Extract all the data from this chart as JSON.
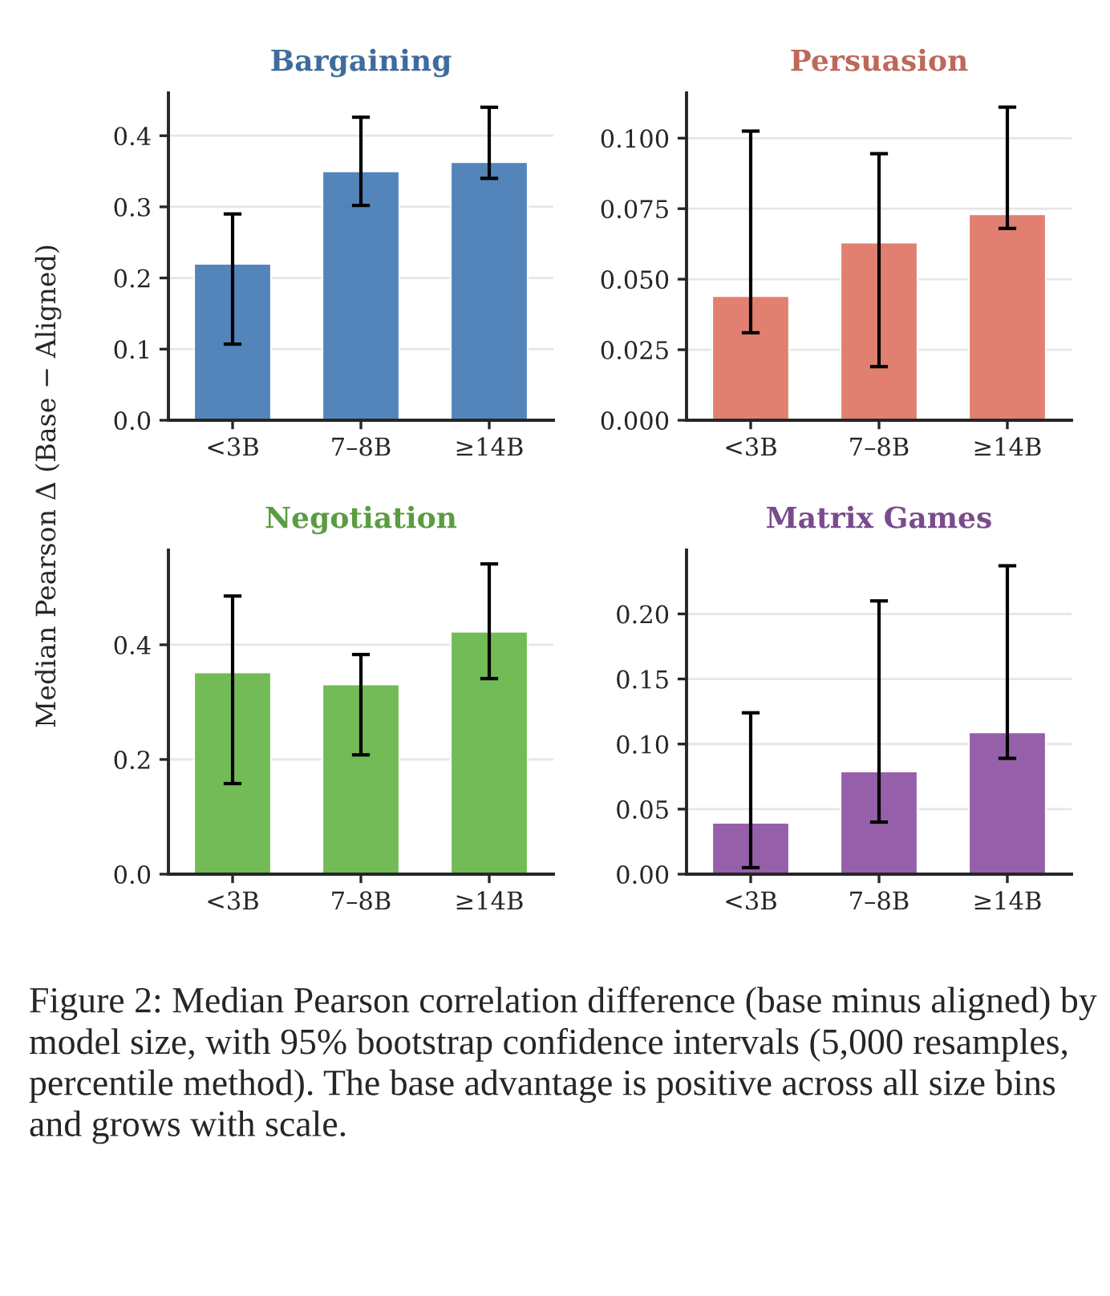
{
  "chart_data": [
    {
      "type": "bar",
      "title": "Bargaining",
      "ylabel": "Median Pearson Δ (Base − Aligned)",
      "categories": [
        "<3B",
        "7–8B",
        "≥14B"
      ],
      "ylim": [
        0,
        0.46
      ],
      "yticks": [
        {
          "value": 0,
          "label": "0.0"
        },
        0.1,
        0.2,
        0.3,
        0.4
      ],
      "grid": "y",
      "series": [
        {
          "color": "#4a7fb8",
          "values": [
            0.22,
            0.35,
            0.363
          ],
          "errors": [
            [
              0.107,
              0.29
            ],
            [
              0.302,
              0.426
            ],
            [
              0.34,
              0.44
            ]
          ]
        }
      ],
      "annotations": [
        "Figure 2: Median Pearson correlation difference (base minus aligned) by model size, with 95% bootstrap confidence intervals (5,000 resamples, percentile method). The base advantage is positive across all size bins and grows with scale."
      ]
    },
    {
      "type": "bar",
      "title": "Persuasion",
      "categories": [
        "<3B",
        "7–8B",
        "≥14B"
      ],
      "ylim": [
        0,
        0.116
      ],
      "yticks": [
        {
          "value": 0,
          "label": "0.000"
        },
        0.025,
        {
          "value": 0.05,
          "label": "0.050"
        },
        0.075,
        {
          "value": 0.1,
          "label": "0.100"
        }
      ],
      "grid": "y",
      "series": [
        {
          "color": "#e07a6a",
          "values": [
            0.044,
            0.063,
            0.073
          ],
          "errors": [
            [
              0.031,
              0.1025
            ],
            [
              0.019,
              0.0945
            ],
            [
              0.068,
              0.111
            ]
          ]
        }
      ]
    },
    {
      "type": "bar",
      "title": "Negotiation",
      "categories": [
        "<3B",
        "7–8B",
        "≥14B"
      ],
      "ylim": [
        0,
        0.565
      ],
      "yticks": [
        {
          "value": 0,
          "label": "0.0"
        },
        0.2,
        0.4
      ],
      "grid": "y",
      "series": [
        {
          "color": "#6bb84d",
          "values": [
            0.352,
            0.331,
            0.423
          ],
          "errors": [
            [
              0.158,
              0.485
            ],
            [
              0.208,
              0.383
            ],
            [
              0.341,
              0.541
            ]
          ]
        }
      ]
    },
    {
      "type": "bar",
      "title": "Matrix Games",
      "categories": [
        "<3B",
        "7–8B",
        "≥14B"
      ],
      "ylim": [
        0,
        0.249
      ],
      "yticks": [
        {
          "value": 0,
          "label": "0.00"
        },
        0.05,
        {
          "value": 0.1,
          "label": "0.10"
        },
        0.15,
        {
          "value": 0.2,
          "label": "0.20"
        }
      ],
      "grid": "y",
      "series": [
        {
          "color": "#9058a5",
          "values": [
            0.0395,
            0.079,
            0.109
          ],
          "errors": [
            [
              0.005,
              0.124
            ],
            [
              0.04,
              0.21
            ],
            [
              0.089,
              0.237
            ]
          ]
        }
      ]
    }
  ]
}
